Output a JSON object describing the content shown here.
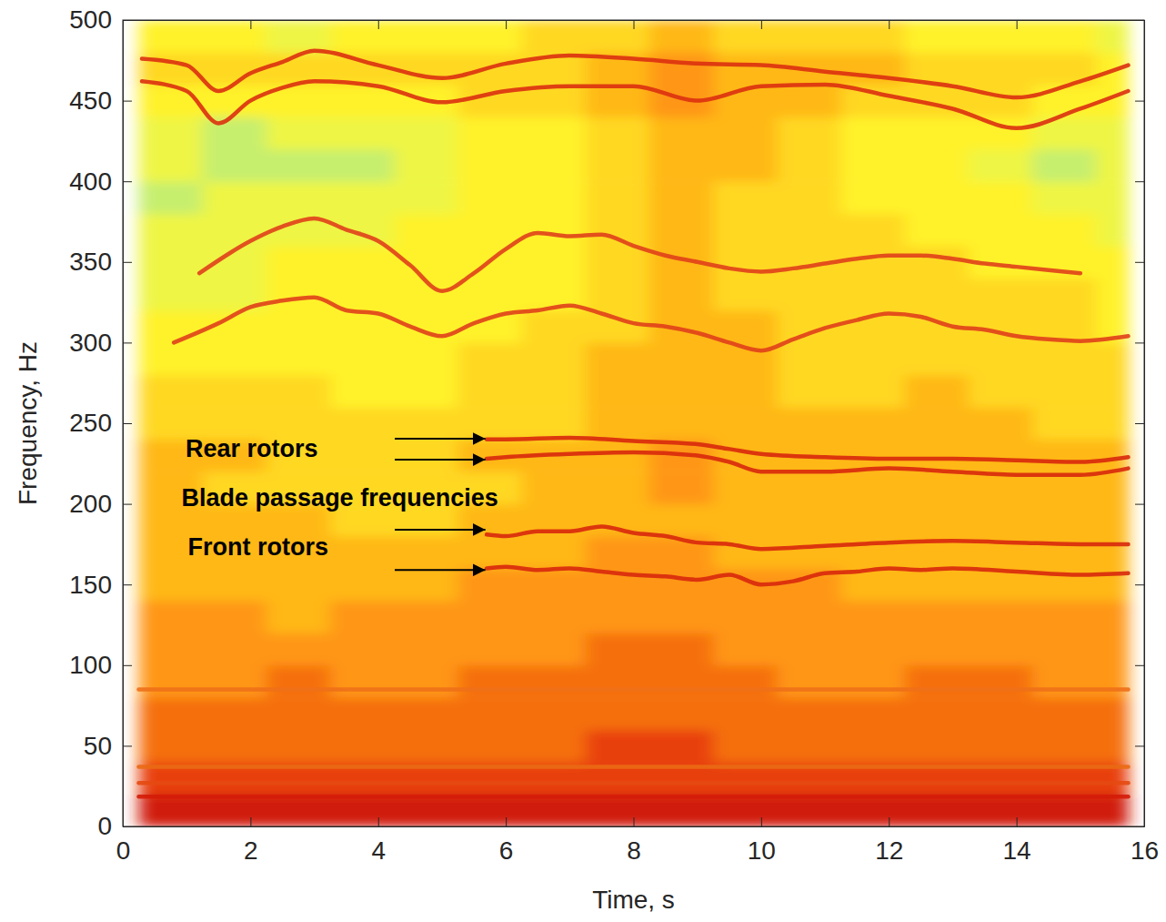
{
  "chart_data": {
    "type": "heatmap",
    "x_label": "Time, s",
    "y_label": "Frequency, Hz",
    "xlim": [
      0,
      16
    ],
    "xticks": [
      0,
      2,
      4,
      6,
      8,
      10,
      12,
      14,
      16
    ],
    "ylim": [
      0,
      500
    ],
    "yticks": [
      0,
      50,
      100,
      150,
      200,
      250,
      300,
      350,
      400,
      450,
      500
    ],
    "grid": false,
    "clim": [
      0,
      9
    ],
    "x_bins": [
      0.25,
      1.25,
      2.25,
      3.25,
      4.25,
      5.25,
      6.25,
      7.25,
      8.25,
      9.25,
      10.25,
      11.25,
      12.25,
      13.25,
      14.25,
      15.25,
      15.75
    ],
    "y_bins": [
      0,
      20,
      40,
      60,
      80,
      100,
      120,
      140,
      160,
      180,
      200,
      220,
      240,
      260,
      280,
      300,
      320,
      340,
      360,
      380,
      400,
      420,
      440,
      460,
      480,
      500
    ],
    "cells": [
      [
        9,
        9,
        9,
        9,
        9,
        9,
        9,
        9,
        9,
        9,
        9,
        9,
        9,
        9,
        9,
        9
      ],
      [
        8,
        8,
        8,
        8,
        8,
        8,
        8,
        8,
        8,
        8,
        8,
        8,
        8,
        8,
        8,
        8
      ],
      [
        7,
        7,
        7,
        7,
        7,
        7,
        7,
        8,
        8,
        7,
        7,
        7,
        7,
        7,
        7,
        7
      ],
      [
        7,
        7,
        7,
        7,
        7,
        7,
        7,
        7,
        7,
        7,
        7,
        7,
        7,
        7,
        7,
        7
      ],
      [
        6,
        6,
        7,
        6,
        6,
        7,
        7,
        7,
        7,
        7,
        6,
        6,
        7,
        7,
        6,
        6
      ],
      [
        6,
        6,
        6,
        6,
        6,
        6,
        6,
        7,
        7,
        6,
        6,
        6,
        6,
        6,
        6,
        6
      ],
      [
        6,
        6,
        5,
        6,
        6,
        6,
        6,
        6,
        6,
        6,
        6,
        6,
        6,
        6,
        6,
        6
      ],
      [
        5,
        5,
        5,
        5,
        5,
        6,
        6,
        6,
        6,
        6,
        6,
        5,
        5,
        5,
        5,
        5
      ],
      [
        5,
        5,
        5,
        5,
        5,
        5,
        5,
        6,
        6,
        5,
        5,
        5,
        5,
        5,
        5,
        5
      ],
      [
        5,
        5,
        5,
        4,
        4,
        5,
        5,
        5,
        5,
        5,
        5,
        5,
        5,
        5,
        5,
        5
      ],
      [
        5,
        4,
        4,
        4,
        4,
        4,
        5,
        5,
        6,
        5,
        5,
        5,
        5,
        5,
        5,
        5
      ],
      [
        5,
        5,
        4,
        4,
        4,
        5,
        5,
        5,
        6,
        5,
        5,
        5,
        5,
        5,
        5,
        5
      ],
      [
        4,
        4,
        4,
        4,
        4,
        4,
        4,
        5,
        5,
        5,
        5,
        5,
        5,
        5,
        4,
        4
      ],
      [
        4,
        4,
        4,
        3,
        3,
        4,
        4,
        5,
        5,
        5,
        4,
        4,
        5,
        4,
        4,
        4
      ],
      [
        3,
        3,
        3,
        3,
        3,
        4,
        4,
        5,
        5,
        5,
        4,
        4,
        4,
        4,
        4,
        4
      ],
      [
        3,
        3,
        3,
        3,
        3,
        3,
        4,
        4,
        5,
        5,
        4,
        4,
        4,
        4,
        4,
        3
      ],
      [
        2,
        2,
        3,
        3,
        3,
        3,
        3,
        4,
        5,
        4,
        4,
        4,
        4,
        4,
        4,
        3
      ],
      [
        2,
        2,
        3,
        3,
        3,
        3,
        3,
        4,
        5,
        4,
        4,
        4,
        4,
        3,
        3,
        3
      ],
      [
        2,
        2,
        2,
        2,
        3,
        3,
        3,
        4,
        5,
        4,
        4,
        4,
        3,
        3,
        3,
        2
      ],
      [
        1,
        2,
        2,
        2,
        2,
        3,
        3,
        4,
        5,
        4,
        4,
        3,
        3,
        3,
        2,
        2
      ],
      [
        2,
        1,
        1,
        1,
        2,
        3,
        3,
        4,
        5,
        5,
        4,
        3,
        3,
        2,
        1,
        2
      ],
      [
        2,
        1,
        2,
        2,
        2,
        3,
        3,
        4,
        5,
        5,
        4,
        3,
        3,
        3,
        2,
        2
      ],
      [
        3,
        3,
        3,
        3,
        3,
        4,
        4,
        5,
        6,
        5,
        5,
        4,
        4,
        4,
        3,
        3
      ],
      [
        4,
        4,
        4,
        4,
        4,
        4,
        4,
        5,
        6,
        5,
        5,
        5,
        4,
        4,
        4,
        3
      ],
      [
        3,
        3,
        2,
        3,
        3,
        3,
        4,
        4,
        5,
        4,
        4,
        4,
        3,
        3,
        3,
        2
      ]
    ],
    "series": [
      {
        "type": "line",
        "color": "#d41c08",
        "x": [
          0.25,
          15.75
        ],
        "values": [
          18.5,
          18.5
        ]
      },
      {
        "type": "line",
        "color": "#e44a12",
        "x": [
          0.25,
          15.75
        ],
        "values": [
          27,
          27
        ]
      },
      {
        "type": "line",
        "color": "#ea6a14",
        "x": [
          0.25,
          15.75
        ],
        "values": [
          37,
          37
        ]
      },
      {
        "type": "line",
        "color": "#ee7018",
        "x": [
          0.25,
          15.75
        ],
        "values": [
          85,
          85
        ]
      },
      {
        "type": "line",
        "color": "#d8280c",
        "x": [
          5.7,
          6,
          6.5,
          7,
          7.5,
          8,
          8.5,
          9,
          9.5,
          10,
          10.5,
          11,
          11.5,
          12,
          12.5,
          13,
          14,
          15,
          15.75
        ],
        "values": [
          160,
          161,
          159,
          160,
          158,
          156,
          155,
          153,
          156,
          150,
          152,
          157,
          158,
          160,
          159,
          160,
          158,
          156,
          157
        ]
      },
      {
        "type": "line",
        "color": "#d8280c",
        "x": [
          5.7,
          6,
          6.5,
          7,
          7.5,
          8,
          8.5,
          9,
          9.5,
          10,
          11,
          12,
          13,
          14,
          15,
          15.75
        ],
        "values": [
          181,
          180,
          183,
          183,
          186,
          182,
          180,
          176,
          175,
          172,
          174,
          176,
          177,
          176,
          175,
          175
        ]
      },
      {
        "type": "line",
        "color": "#d8280c",
        "x": [
          5.7,
          6,
          7,
          8,
          9,
          9.5,
          10,
          11,
          12,
          13,
          14,
          15,
          15.75
        ],
        "values": [
          228,
          229,
          231,
          232,
          230,
          226,
          220,
          220,
          222,
          220,
          218,
          218,
          222
        ]
      },
      {
        "type": "line",
        "color": "#d8280c",
        "x": [
          5.7,
          6,
          7,
          8,
          9,
          9.5,
          10,
          11,
          12,
          13,
          14,
          15,
          15.75
        ],
        "values": [
          240,
          240,
          241,
          239,
          237,
          234,
          231,
          229,
          228,
          228,
          227,
          226,
          229
        ]
      },
      {
        "type": "line",
        "color": "#e0401a",
        "x": [
          0.8,
          1.5,
          2,
          2.5,
          3,
          3.5,
          4,
          4.5,
          5,
          5.5,
          6,
          6.5,
          7,
          7.5,
          8,
          8.5,
          9,
          9.5,
          10,
          10.5,
          11,
          11.5,
          12,
          12.5,
          13,
          13.5,
          14,
          14.5,
          15,
          15.75
        ],
        "values": [
          300,
          312,
          322,
          326,
          328,
          320,
          318,
          310,
          304,
          312,
          318,
          320,
          323,
          318,
          312,
          310,
          306,
          300,
          295,
          302,
          309,
          314,
          318,
          316,
          310,
          308,
          304,
          302,
          301,
          304
        ]
      },
      {
        "type": "line",
        "color": "#e0401a",
        "x": [
          1.2,
          2,
          2.5,
          3,
          3.5,
          4,
          4.5,
          5,
          5.5,
          6,
          6.5,
          7,
          7.5,
          8,
          8.5,
          9,
          9.5,
          10,
          10.5,
          11,
          11.5,
          12,
          12.5,
          13,
          13.5,
          14,
          15
        ],
        "values": [
          343,
          363,
          372,
          377,
          370,
          363,
          348,
          332,
          343,
          358,
          368,
          366,
          367,
          360,
          354,
          350,
          346,
          344,
          346,
          349,
          352,
          354,
          354,
          352,
          349,
          347,
          343
        ]
      },
      {
        "type": "line",
        "color": "#dc3010",
        "x": [
          0.3,
          1,
          1.5,
          2,
          2.5,
          3,
          4,
          5,
          6,
          7,
          8,
          9,
          10,
          11,
          12,
          13,
          14,
          15,
          15.75
        ],
        "values": [
          462,
          456,
          436,
          450,
          458,
          462,
          459,
          449,
          456,
          459,
          459,
          450,
          459,
          460,
          453,
          445,
          433,
          445,
          456
        ]
      },
      {
        "type": "line",
        "color": "#dc3010",
        "x": [
          0.3,
          1,
          1.5,
          2,
          2.5,
          3,
          4,
          5,
          6,
          7,
          8,
          9,
          10,
          11,
          12,
          13,
          14,
          15,
          15.75
        ],
        "values": [
          476,
          472,
          456,
          467,
          474,
          481,
          472,
          464,
          473,
          478,
          476,
          473,
          472,
          468,
          464,
          459,
          452,
          462,
          472
        ]
      }
    ],
    "annotations": [
      {
        "text": "Rear rotors",
        "x": 2.02,
        "y": 234
      },
      {
        "text": "Blade passage frequencies",
        "x": 3.4,
        "y": 204
      },
      {
        "text": "Front rotors",
        "x": 2.12,
        "y": 173
      }
    ],
    "arrows": [
      {
        "x": [
          4.26,
          5.68
        ],
        "y": 240.4
      },
      {
        "x": [
          4.26,
          5.68
        ],
        "y": 227.4
      },
      {
        "x": [
          4.26,
          5.68
        ],
        "y": 184
      },
      {
        "x": [
          4.26,
          5.68
        ],
        "y": 159
      }
    ]
  }
}
